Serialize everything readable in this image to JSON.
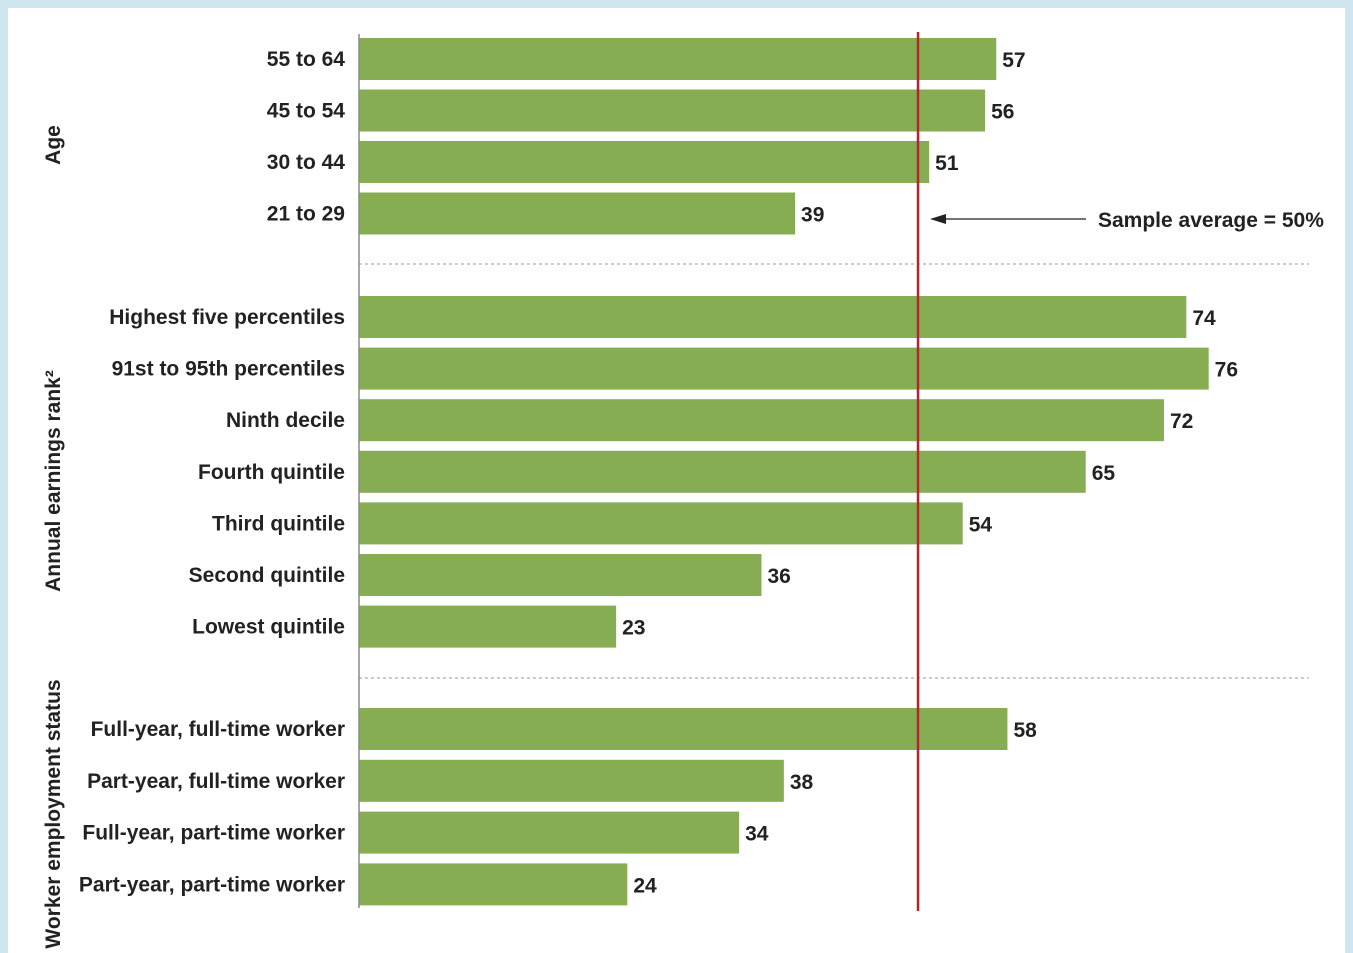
{
  "chart_data": {
    "type": "bar",
    "orientation": "horizontal",
    "xlim": [
      0,
      80
    ],
    "reference_line": {
      "value": 50,
      "label": "Sample average = 50%"
    },
    "groups": [
      {
        "label": "Age",
        "categories": [
          "55 to 64",
          "45 to 54",
          "30 to 44",
          "21 to 29"
        ],
        "values": [
          57,
          56,
          51,
          39
        ]
      },
      {
        "label": "Annual earnings rank²",
        "categories": [
          "Highest five percentiles",
          "91st to 95th percentiles",
          "Ninth decile",
          "Fourth quintile",
          "Third quintile",
          "Second quintile",
          "Lowest quintile"
        ],
        "values": [
          74,
          76,
          72,
          65,
          54,
          36,
          23
        ]
      },
      {
        "label": "Worker employment status",
        "categories": [
          "Full-year, full-time worker",
          "Part-year, full-time worker",
          "Full-year, part-time worker",
          "Part-year, part-time worker"
        ],
        "values": [
          58,
          38,
          34,
          24
        ]
      }
    ],
    "colors": {
      "bar": "#86ad52",
      "reference_line": "#b3262e",
      "separator": "#9a9a9a"
    }
  }
}
